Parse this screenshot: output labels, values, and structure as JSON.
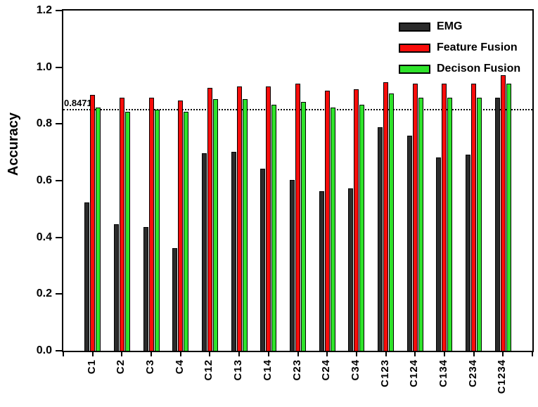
{
  "chart_data": {
    "type": "bar",
    "title": "",
    "ylabel": "Accuracy",
    "xlabel": "",
    "ylim": [
      0,
      1.2
    ],
    "yticks": [
      0.0,
      0.2,
      0.4,
      0.6,
      0.8,
      1.0,
      1.2
    ],
    "categories": [
      "C1",
      "C2",
      "C3",
      "C4",
      "C12",
      "C13",
      "C14",
      "C23",
      "C24",
      "C34",
      "C123",
      "C124",
      "C134",
      "C234",
      "C1234"
    ],
    "series": [
      {
        "name": "EMG",
        "color": "#2b2b2b",
        "values": [
          0.52,
          0.445,
          0.435,
          0.36,
          0.695,
          0.7,
          0.64,
          0.6,
          0.56,
          0.57,
          0.785,
          0.755,
          0.68,
          0.69,
          0.89
        ]
      },
      {
        "name": "Feature Fusion",
        "color": "#f90d0b",
        "values": [
          0.9,
          0.89,
          0.89,
          0.88,
          0.925,
          0.93,
          0.93,
          0.94,
          0.915,
          0.92,
          0.945,
          0.94,
          0.94,
          0.94,
          0.97
        ]
      },
      {
        "name": "Decison Fusion",
        "color": "#2fe32b",
        "values": [
          0.855,
          0.84,
          0.848,
          0.84,
          0.885,
          0.885,
          0.865,
          0.875,
          0.855,
          0.865,
          0.905,
          0.89,
          0.89,
          0.89,
          0.94
        ]
      }
    ],
    "reference_line": {
      "value": 0.8471,
      "label": "0.8471",
      "style": "dotted"
    },
    "legend_position": "top-right",
    "grid": false,
    "bar_outline": "#000000"
  }
}
